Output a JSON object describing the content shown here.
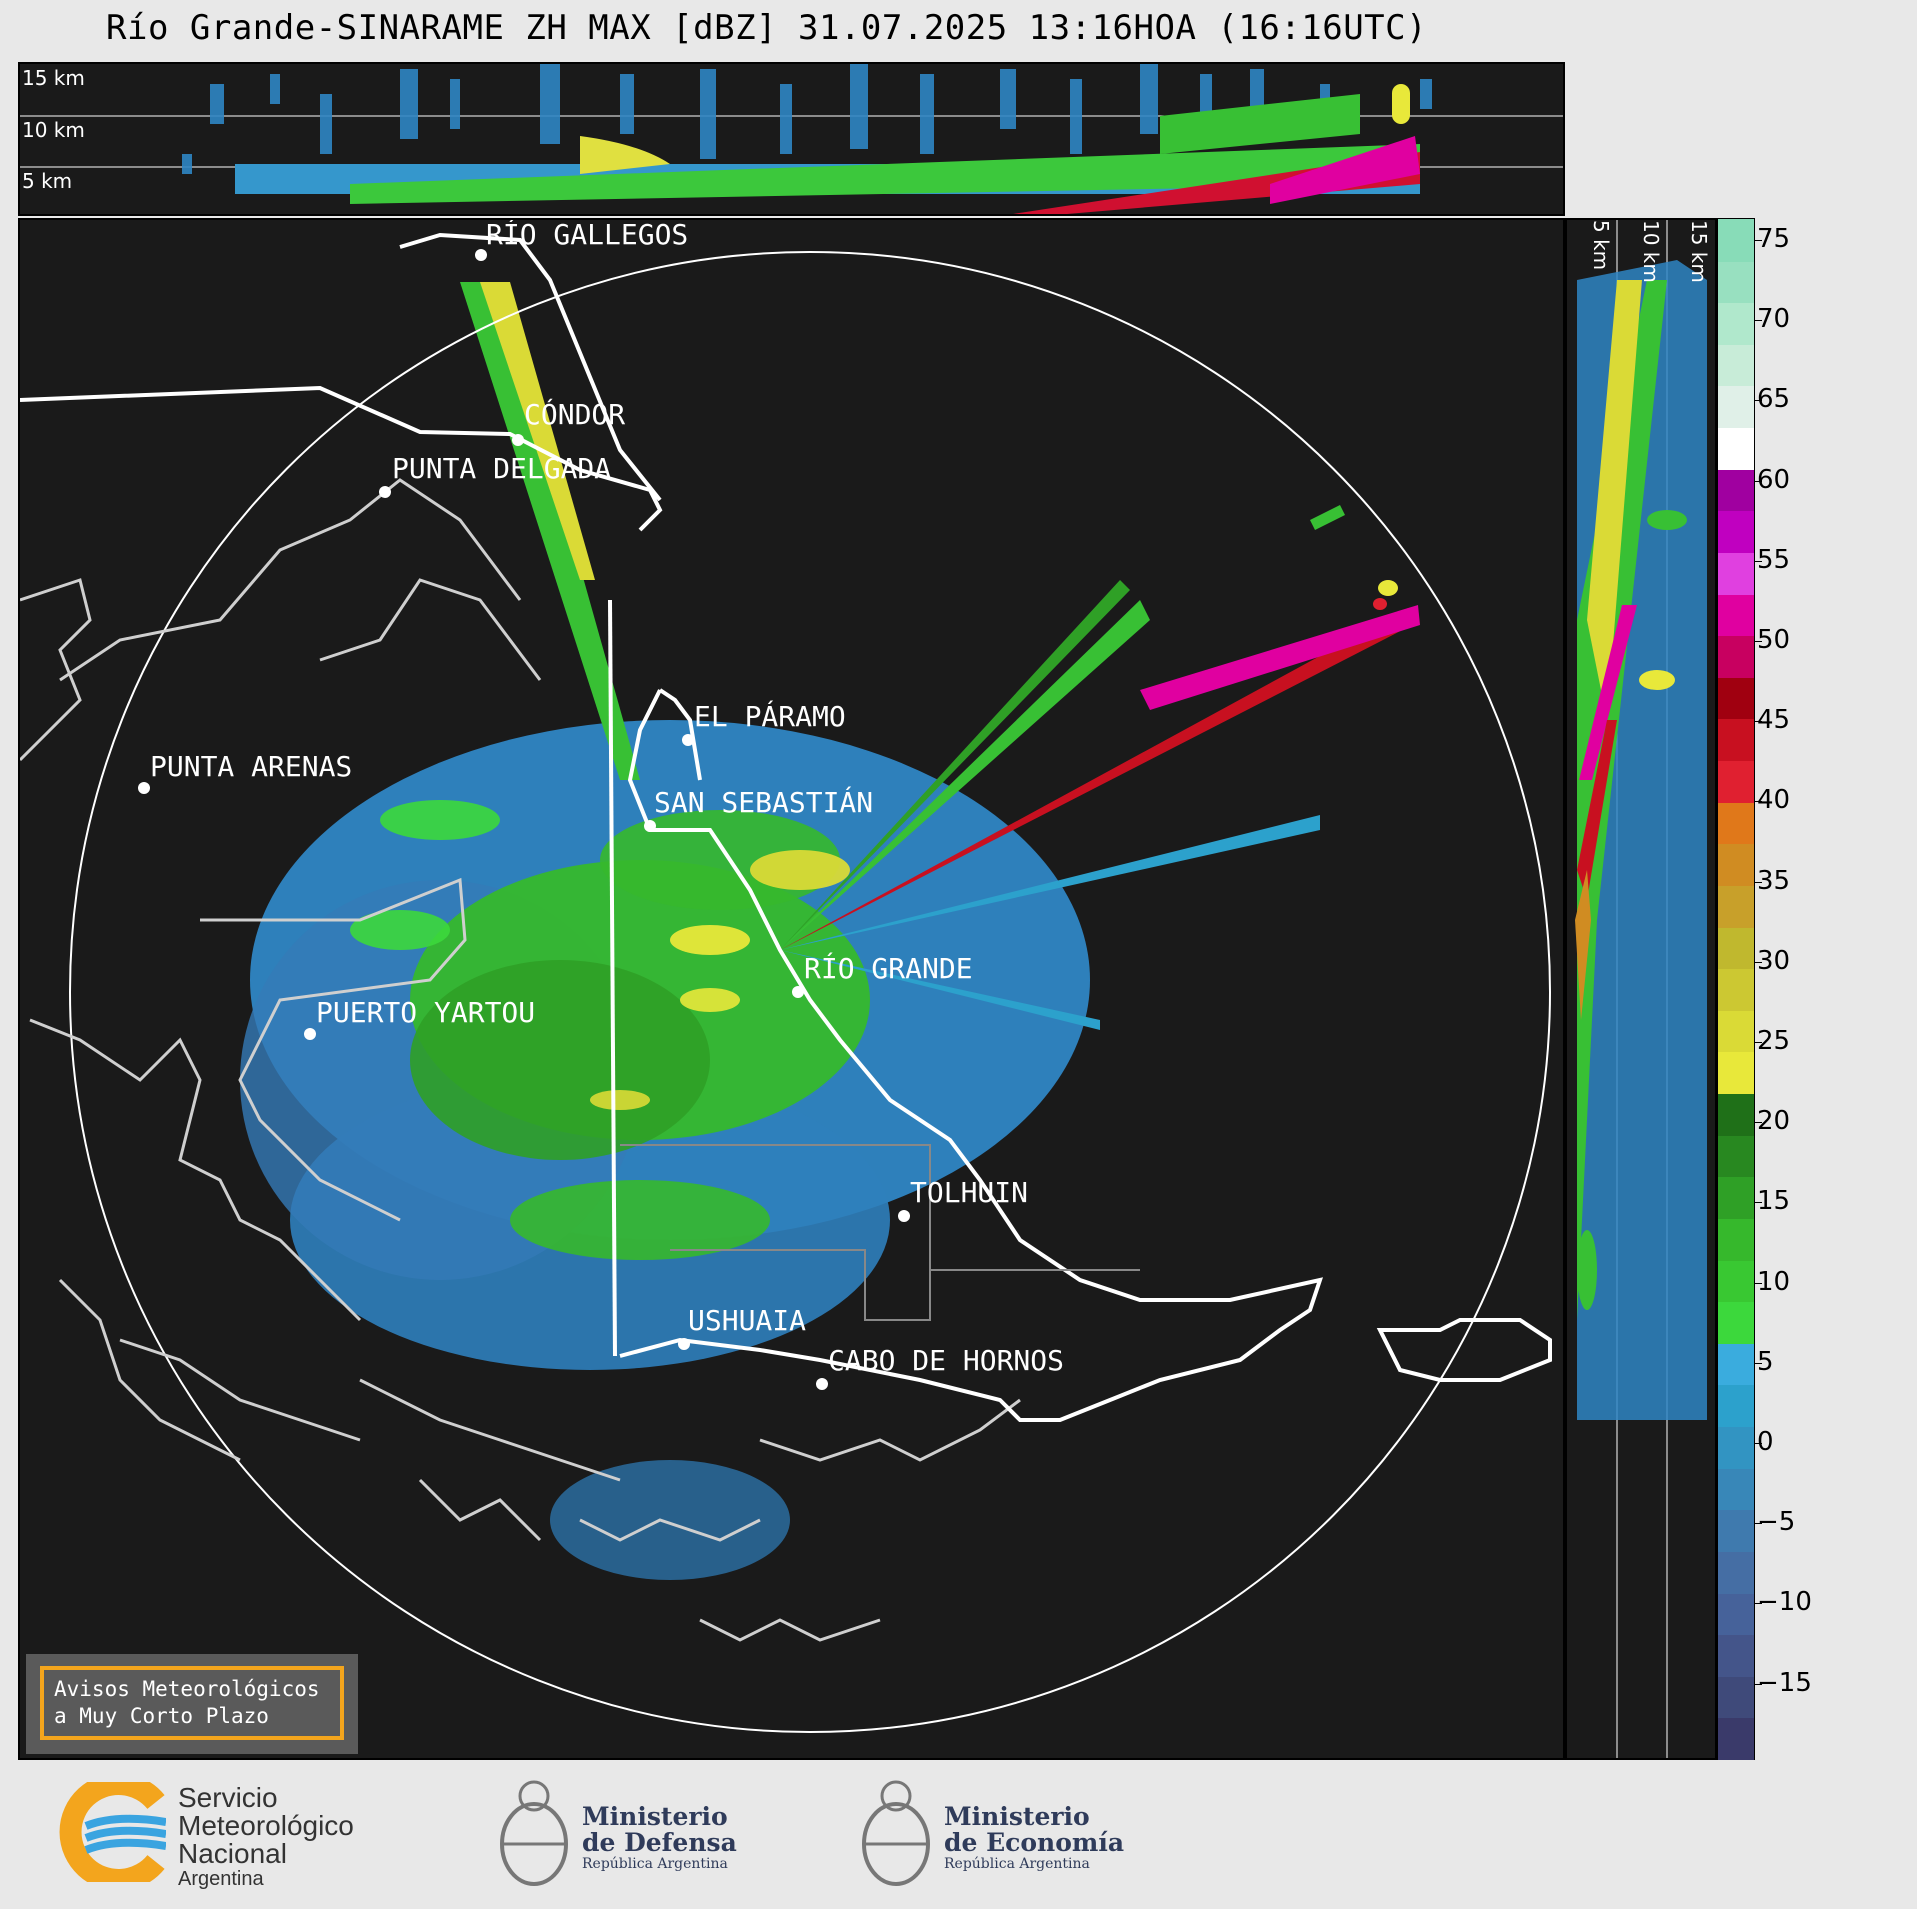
{
  "title": "Río Grande-SINARAME ZH MAX [dBZ] 31.07.2025 13:16HOA (16:16UTC)",
  "top_panel": {
    "labels": [
      "15 km",
      "10 km",
      "5 km"
    ]
  },
  "side_panel": {
    "labels": [
      "5 km",
      "10 km",
      "15 km"
    ]
  },
  "colorbar": {
    "unit": "dBZ",
    "ticks": [
      "75",
      "70",
      "65",
      "60",
      "55",
      "50",
      "45",
      "40",
      "35",
      "30",
      "25",
      "20",
      "15",
      "10",
      "5",
      "0",
      "−5",
      "−10",
      "−15"
    ],
    "colors": [
      "#3a3a6a",
      "#3f4a7a",
      "#44558a",
      "#46629a",
      "#456ea4",
      "#3f7aae",
      "#3887b8",
      "#3294c2",
      "#2ca1cc",
      "#3aacde",
      "#3cd83c",
      "#39c832",
      "#36b82c",
      "#2fa026",
      "#288820",
      "#1f7018",
      "#e8e83a",
      "#dada36",
      "#ccc832",
      "#c0b82e",
      "#c8a02a",
      "#d08c22",
      "#e0781a",
      "#e02030",
      "#c81020",
      "#a00010",
      "#c80060",
      "#e000a0",
      "#e040e0",
      "#c000c0",
      "#a000a0",
      "#ffffff",
      "#e0f0e8",
      "#c8ecd8",
      "#b0e8cc",
      "#98e0c0",
      "#88dcb8"
    ]
  },
  "map": {
    "cities": [
      {
        "name": "RÍO GALLEGOS"
      },
      {
        "name": "CÓNDOR"
      },
      {
        "name": "PUNTA DELGADA"
      },
      {
        "name": "PUNTA ARENAS"
      },
      {
        "name": "EL PÁRAMO"
      },
      {
        "name": "SAN SEBASTIÁN"
      },
      {
        "name": "RÍO GRANDE"
      },
      {
        "name": "PUERTO YARTOU"
      },
      {
        "name": "TOLHUIN"
      },
      {
        "name": "USHUAIA"
      },
      {
        "name": "CABO DE HORNOS"
      }
    ]
  },
  "avisos": {
    "line1": "Avisos Meteorológicos",
    "line2": "a Muy Corto Plazo"
  },
  "logos": {
    "smn": {
      "line1": "Servicio",
      "line2": "Meteorológico",
      "line3": "Nacional",
      "line4": "Argentina"
    },
    "defensa": {
      "line1": "Ministerio",
      "line2": "de Defensa",
      "line3": "República Argentina"
    },
    "economia": {
      "line1": "Ministerio",
      "line2": "de Economía",
      "line3": "República Argentina"
    }
  }
}
